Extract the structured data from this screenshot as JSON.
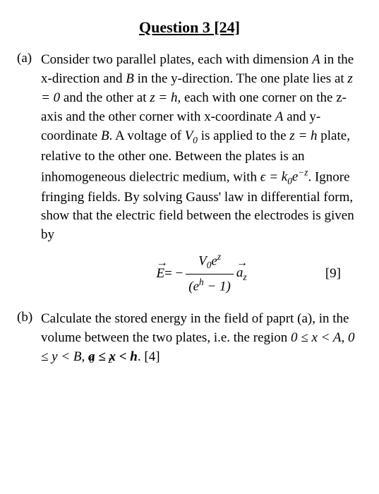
{
  "title": "Question 3 [24]",
  "partA": {
    "label": "(a)",
    "text1": "Consider two parallel plates, each with dimension ",
    "A1": "A",
    "text2": " in the x-direction and ",
    "B1": "B",
    "text3": " in the y-direction. The one plate lies at ",
    "z0": "z = 0",
    "text4": " and the other at ",
    "zh": "z = h",
    "text5": ", each with one corner on the z-axis and the other corner with x-coordinate ",
    "A2": "A",
    "text6": " and y-coordinate ",
    "B2": "B",
    "text7": ". A voltage of ",
    "V0": "V",
    "V0sub": "0",
    "text8": " is applied to the ",
    "zh2": "z = h",
    "text9": " plate, relative to the other one. Between the plates is an inhomogeneous dielectric medium, with ",
    "eps": "ϵ =",
    "k0": " k",
    "k0sub": "0",
    "eexp": "e",
    "negz": "−z",
    "text10": ". Ignore fringing fields. By solving Gauss' law in differential form, show that the electric field between the electrodes is given by",
    "eq_lhs_E": "E",
    "eq_eq": " = − ",
    "eq_num_V": "V",
    "eq_num_0": "0",
    "eq_num_e": "e",
    "eq_num_z": "z",
    "eq_den_left": "(e",
    "eq_den_h": "h",
    "eq_den_right": " − 1)",
    "eq_az_a": "a",
    "eq_az_z": "z",
    "mark": "[9]"
  },
  "partB": {
    "label": "(b)",
    "text1": "Calculate the stored energy in the field of paprt (a), in the volume between the two plates, i.e. the region ",
    "rx": "0 ≤ x < A",
    "comma1": ", ",
    "ry": "0 ≤ y < B",
    "comma2": ", ",
    "rz_main": "a ≤ x < h",
    "rz_under1": "0",
    "rz_under2": "z",
    "text2": ". ",
    "mark": "[4]"
  }
}
